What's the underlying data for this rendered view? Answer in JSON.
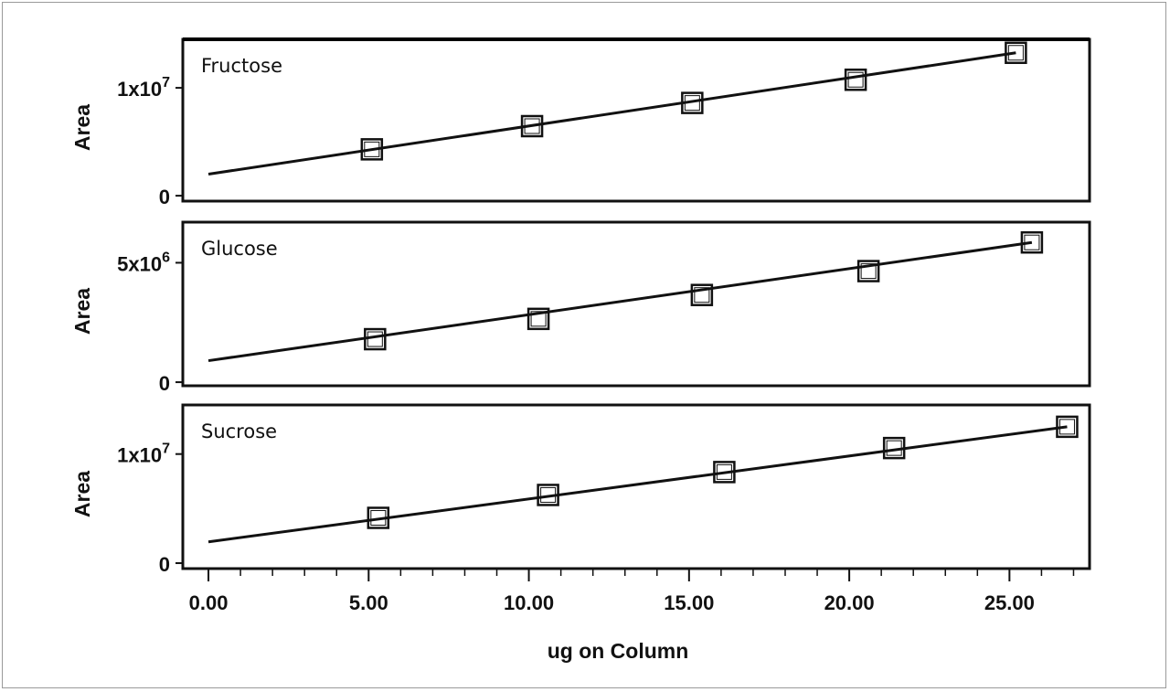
{
  "chart_data": [
    {
      "type": "scatter",
      "title": "Fructose",
      "ylabel": "Area",
      "yticks": [
        {
          "value": 0,
          "base": "0",
          "exp": ""
        },
        {
          "value": 10000000,
          "base": "1x10",
          "exp": "7"
        }
      ],
      "ylim": [
        -500000,
        14500000
      ],
      "xlim": [
        -0.8,
        27.5
      ],
      "grid": false,
      "fit_line": {
        "x": [
          0,
          25.2
        ],
        "y": [
          2000000,
          13250000
        ]
      },
      "series": [
        {
          "x": [
            5.1,
            10.1,
            15.1,
            20.2,
            25.2
          ],
          "y": [
            4300000,
            6450000,
            8600000,
            10750000,
            13250000
          ]
        }
      ]
    },
    {
      "type": "scatter",
      "title": "Glucose",
      "ylabel": "Area",
      "yticks": [
        {
          "value": 0,
          "base": "0",
          "exp": ""
        },
        {
          "value": 5000000,
          "base": "5x10",
          "exp": "6"
        }
      ],
      "ylim": [
        -150000,
        6700000
      ],
      "xlim": [
        -0.8,
        27.5
      ],
      "grid": false,
      "fit_line": {
        "x": [
          0,
          25.7
        ],
        "y": [
          900000,
          5850000
        ]
      },
      "series": [
        {
          "x": [
            5.2,
            10.3,
            15.4,
            20.6,
            25.7
          ],
          "y": [
            1800000,
            2650000,
            3650000,
            4650000,
            5850000
          ]
        }
      ]
    },
    {
      "type": "scatter",
      "title": "Sucrose",
      "ylabel": "Area",
      "yticks": [
        {
          "value": 0,
          "base": "0",
          "exp": ""
        },
        {
          "value": 10000000,
          "base": "1x10",
          "exp": "7"
        }
      ],
      "ylim": [
        -500000,
        14500000
      ],
      "xlabel": "ug on Column",
      "xticks": [
        "0.00",
        "5.00",
        "10.00",
        "15.00",
        "20.00",
        "25.00"
      ],
      "xlim": [
        -0.8,
        27.5
      ],
      "grid": false,
      "fit_line": {
        "x": [
          0,
          26.8
        ],
        "y": [
          1950000,
          12500000
        ]
      },
      "series": [
        {
          "x": [
            5.3,
            10.6,
            16.1,
            21.4,
            26.8
          ],
          "y": [
            4150000,
            6250000,
            8350000,
            10550000,
            12500000
          ]
        }
      ]
    }
  ]
}
